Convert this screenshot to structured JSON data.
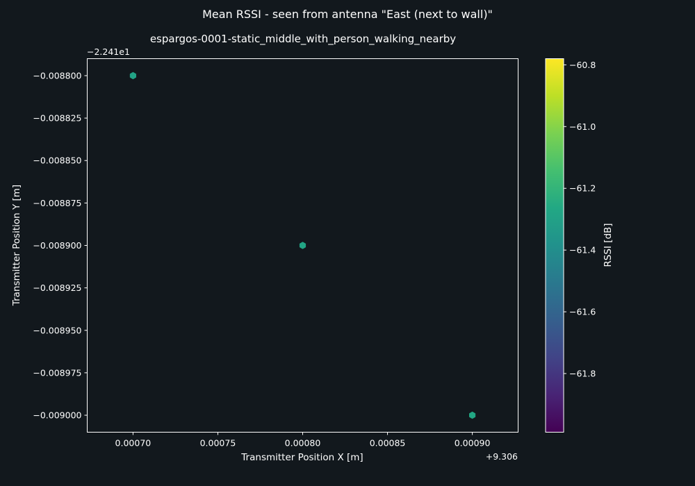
{
  "chart_data": {
    "type": "scatter",
    "title": "Mean RSSI - seen from antenna \"East (next to wall)\"",
    "subtitle": "espargos-0001-static_middle_with_person_walking_nearby",
    "xlabel": "Transmitter Position X [m]",
    "ylabel": "Transmitter Position Y [m]",
    "x_offset_label": "+9.306",
    "y_offset_label": "−2.241e1",
    "x_ticks": [
      0.0007,
      0.00075,
      0.0008,
      0.00085,
      0.0009
    ],
    "x_tick_labels": [
      "0.00070",
      "0.00075",
      "0.00080",
      "0.00085",
      "0.00090"
    ],
    "xlim": [
      0.000673,
      0.000927
    ],
    "y_ticks": [
      -0.0088,
      -0.008825,
      -0.00885,
      -0.008875,
      -0.0089,
      -0.008925,
      -0.00895,
      -0.008975,
      -0.009
    ],
    "y_tick_labels": [
      "−0.008800",
      "−0.008825",
      "−0.008850",
      "−0.008875",
      "−0.008900",
      "−0.008925",
      "−0.008950",
      "−0.008975",
      "−0.009000"
    ],
    "ylim": [
      -0.00901,
      -0.00879
    ],
    "points": [
      {
        "x": 0.0007,
        "y": -0.0088,
        "rssi": -61.29
      },
      {
        "x": 0.0008,
        "y": -0.0089,
        "rssi": -61.28
      },
      {
        "x": 0.0009,
        "y": -0.009,
        "rssi": -61.27
      }
    ],
    "colorbar": {
      "label": "RSSI [dB]",
      "colormap": "viridis",
      "range": [
        -61.99,
        -60.78
      ],
      "ticks": [
        -60.8,
        -61.0,
        -61.2,
        -61.4,
        -61.6,
        -61.8
      ],
      "tick_labels": [
        "−60.8",
        "−61.0",
        "−61.2",
        "−61.4",
        "−61.6",
        "−61.8"
      ]
    },
    "grid": false,
    "colors": {
      "background": "#12181d",
      "axes": "#ffffff",
      "text": "#ffffff"
    }
  }
}
